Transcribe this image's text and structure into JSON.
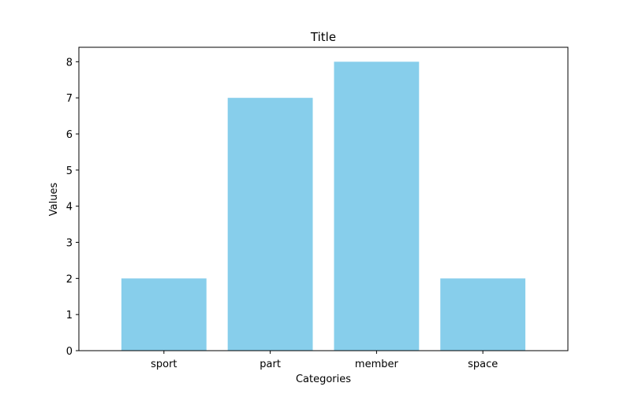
{
  "chart_data": {
    "type": "bar",
    "title": "Title",
    "xlabel": "Categories",
    "ylabel": "Values",
    "categories": [
      "sport",
      "part",
      "member",
      "space"
    ],
    "values": [
      2,
      7,
      8,
      2
    ],
    "ylim": [
      0,
      8.4
    ],
    "yticks": [
      "0",
      "1",
      "2",
      "3",
      "4",
      "5",
      "6",
      "7",
      "8"
    ],
    "grid": false,
    "bar_color": "#87CEEB"
  }
}
